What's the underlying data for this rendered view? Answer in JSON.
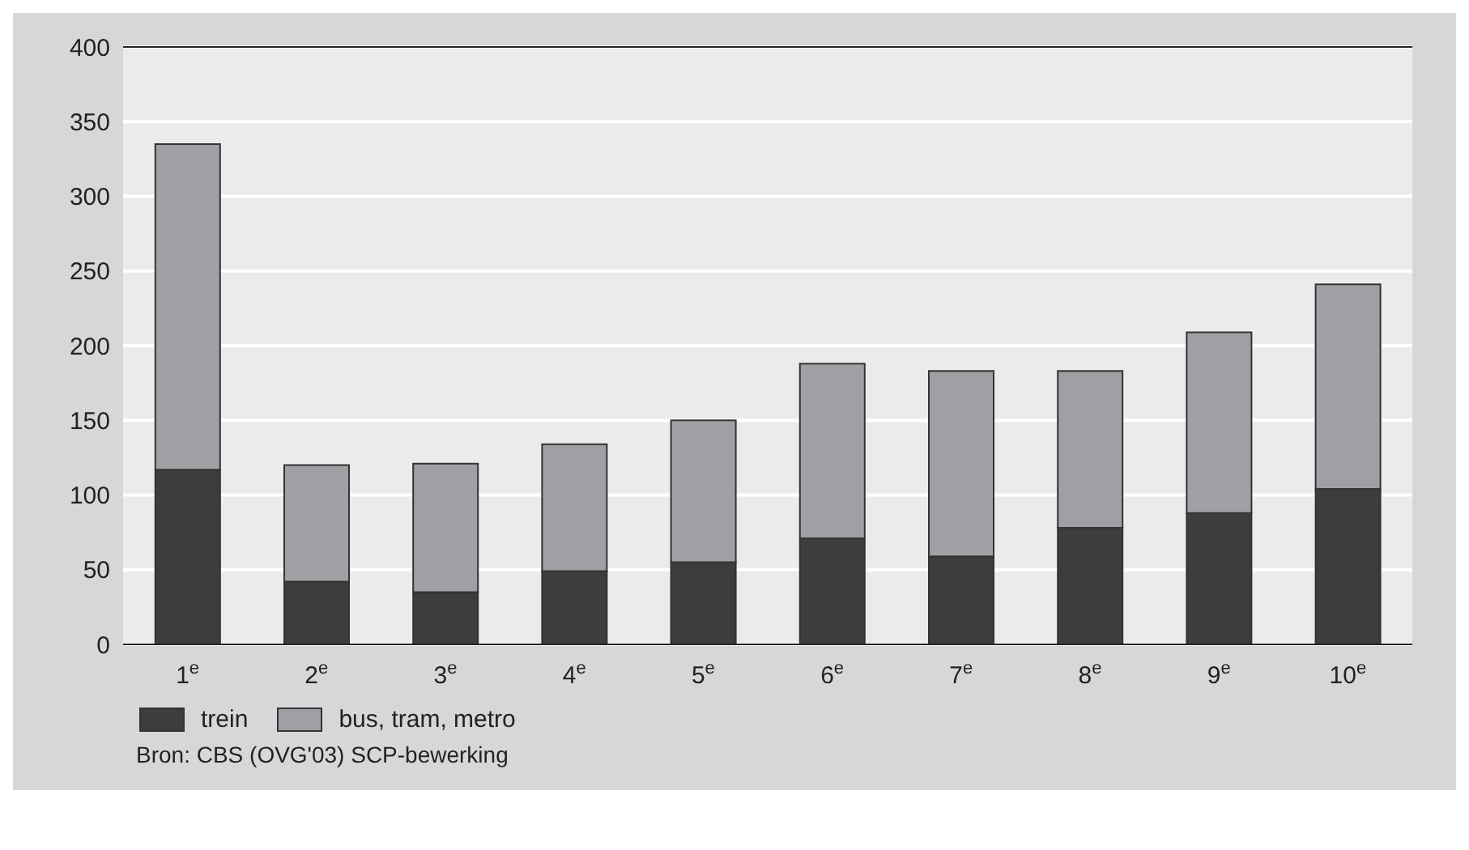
{
  "chart_data": {
    "type": "bar",
    "stacked": true,
    "categories": [
      "1$^{e}$",
      "2$^{e}$",
      "3$^{e}$",
      "4$^{e}$",
      "5$^{e}$",
      "6$^{e}$",
      "7$^{e}$",
      "8$^{e}$",
      "9$^{e}$",
      "10$^{e}$"
    ],
    "series": [
      {
        "name": "trein",
        "color": "#3d3d3d",
        "values": [
          117,
          42,
          35,
          49,
          55,
          71,
          59,
          78,
          88,
          104
        ]
      },
      {
        "name": "bus, tram, metro",
        "color": "#9fa0a3",
        "values": [
          218,
          78,
          86,
          85,
          95,
          117,
          124,
          105,
          121,
          137
        ]
      }
    ],
    "ylim": [
      0,
      400
    ],
    "yticks": [
      0,
      50,
      100,
      150,
      200,
      250,
      300,
      350,
      400
    ],
    "grid": "y",
    "legend": "bottom left",
    "annotations": [
      "Bron: CBS (OVG'03) SCP-bewerking"
    ]
  }
}
